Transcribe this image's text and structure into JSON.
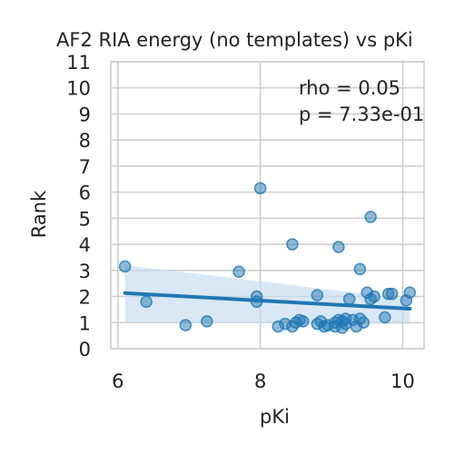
{
  "chart_data": {
    "type": "scatter",
    "title": "AF2 RIA energy (no templates) vs pKi",
    "xlabel": "pKi",
    "ylabel": "Rank",
    "xlim": [
      5.9,
      10.3
    ],
    "ylim": [
      0,
      11
    ],
    "xticks": [
      6,
      8,
      10
    ],
    "yticks": [
      0,
      1,
      2,
      3,
      4,
      5,
      6,
      7,
      8,
      9,
      10,
      11
    ],
    "grid": true,
    "annotation": {
      "lines": [
        "rho = 0.05",
        "p = 7.33e-01"
      ]
    },
    "colors": {
      "points": "#1f77b4",
      "line": "#1f77b4",
      "band": "#c6dbef"
    },
    "series": [
      {
        "kind": "points",
        "points": [
          [
            6.1,
            3.15
          ],
          [
            6.4,
            1.8
          ],
          [
            6.95,
            0.9
          ],
          [
            7.25,
            1.05
          ],
          [
            7.7,
            2.95
          ],
          [
            7.95,
            2.0
          ],
          [
            7.95,
            1.8
          ],
          [
            8.0,
            6.15
          ],
          [
            8.25,
            0.85
          ],
          [
            8.35,
            0.95
          ],
          [
            8.45,
            4.0
          ],
          [
            8.45,
            0.85
          ],
          [
            8.5,
            1.0
          ],
          [
            8.55,
            1.1
          ],
          [
            8.6,
            1.05
          ],
          [
            8.8,
            2.05
          ],
          [
            8.8,
            0.95
          ],
          [
            8.85,
            1.05
          ],
          [
            8.9,
            0.85
          ],
          [
            8.95,
            0.9
          ],
          [
            9.05,
            1.0
          ],
          [
            9.05,
            0.85
          ],
          [
            9.1,
            1.1
          ],
          [
            9.1,
            3.9
          ],
          [
            9.15,
            1.05
          ],
          [
            9.15,
            0.8
          ],
          [
            9.2,
            1.15
          ],
          [
            9.2,
            0.95
          ],
          [
            9.25,
            1.9
          ],
          [
            9.3,
            1.1
          ],
          [
            9.35,
            0.85
          ],
          [
            9.4,
            1.15
          ],
          [
            9.4,
            3.05
          ],
          [
            9.45,
            1.0
          ],
          [
            9.5,
            2.15
          ],
          [
            9.55,
            5.05
          ],
          [
            9.55,
            1.9
          ],
          [
            9.6,
            2.0
          ],
          [
            9.75,
            1.2
          ],
          [
            9.8,
            2.1
          ],
          [
            9.85,
            2.1
          ],
          [
            10.05,
            1.85
          ],
          [
            10.1,
            2.15
          ]
        ]
      },
      {
        "kind": "regression",
        "x": [
          6.1,
          10.1
        ],
        "y": [
          2.13,
          1.53
        ],
        "ci_lower": [
          1.0,
          0.95
        ],
        "ci_upper": [
          3.2,
          1.9
        ]
      }
    ]
  }
}
